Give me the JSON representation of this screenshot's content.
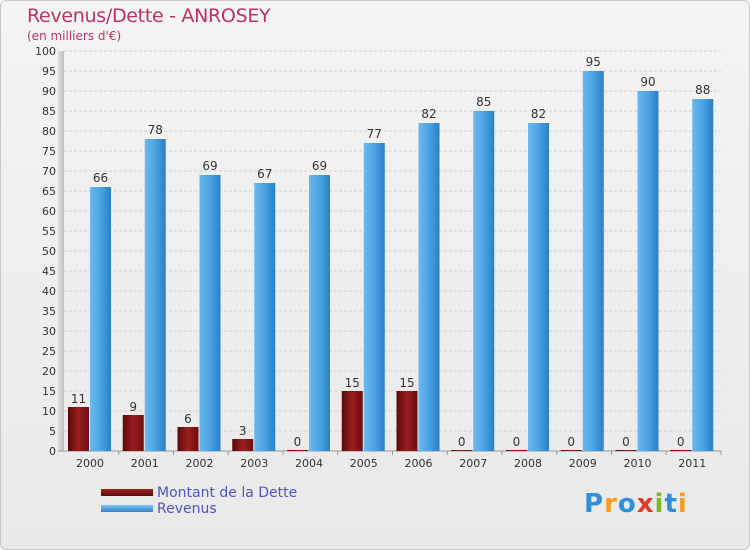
{
  "chart_data": {
    "type": "bar",
    "title": "Revenus/Dette - ANROSEY",
    "subtitle": "(en milliers d'€)",
    "categories": [
      "2000",
      "2001",
      "2002",
      "2003",
      "2004",
      "2005",
      "2006",
      "2007",
      "2008",
      "2009",
      "2010",
      "2011"
    ],
    "series": [
      {
        "name": "Montant de la Dette",
        "color": "#7a1414",
        "values": [
          11,
          9,
          6,
          3,
          0,
          15,
          15,
          0,
          0,
          0,
          0,
          0
        ]
      },
      {
        "name": "Revenus",
        "color": "#4aa3e3",
        "values": [
          66,
          78,
          69,
          67,
          69,
          77,
          82,
          85,
          82,
          95,
          90,
          88
        ]
      }
    ],
    "yticks": [
      0,
      5,
      10,
      15,
      20,
      25,
      30,
      35,
      40,
      45,
      50,
      55,
      60,
      65,
      70,
      75,
      80,
      85,
      90,
      95,
      100
    ],
    "ylim": [
      0,
      100
    ],
    "grid": true,
    "legend_position": "bottom-left"
  },
  "legend": {
    "items": [
      {
        "label": "Montant de la Dette",
        "color": "#7a1414"
      },
      {
        "label": "Revenus",
        "color": "#4aa3e3"
      }
    ]
  },
  "logo": {
    "text": "Proxiti",
    "letters": [
      "P",
      "r",
      "o",
      "x",
      "i",
      "t",
      "i"
    ],
    "colors": [
      "#2f8fd8",
      "#f0a020",
      "#2f8fd8",
      "#e03a2a",
      "#78b82a",
      "#2f8fd8",
      "#f0a020"
    ]
  }
}
